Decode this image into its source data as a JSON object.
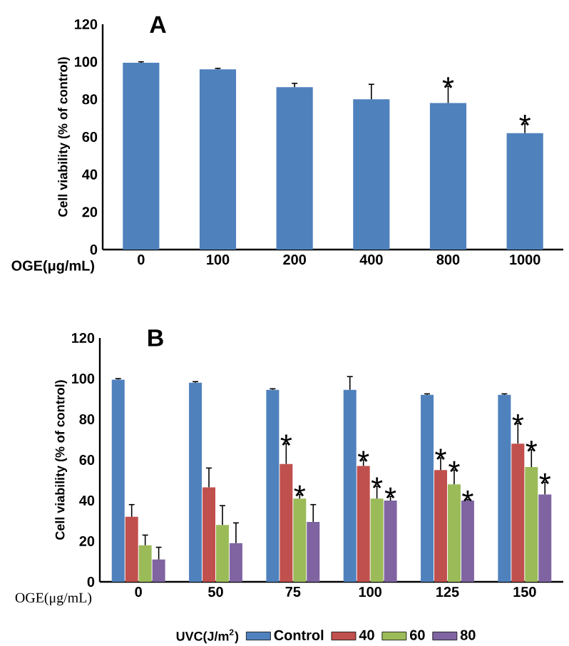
{
  "chart_data": [
    {
      "type": "bar",
      "title": "A",
      "xlabel": "OGE(μg/mL)",
      "ylabel": "Cell viability (% of control)",
      "categories": [
        "0",
        "100",
        "200",
        "400",
        "800",
        "1000"
      ],
      "values": [
        99.5,
        96,
        86.5,
        80,
        78,
        62
      ],
      "color": "#4f81bd",
      "errors": [
        [
          99.5,
          100
        ],
        [
          96,
          96.5
        ],
        [
          86.5,
          88.5
        ],
        [
          80,
          88
        ],
        [
          78,
          87
        ],
        [
          62,
          67
        ]
      ],
      "ylim": [
        0,
        120
      ],
      "yticks": [
        0,
        20,
        40,
        60,
        80,
        100,
        120
      ],
      "annotations": [
        {
          "text": "*",
          "x": "800",
          "y": 87
        },
        {
          "text": "*",
          "x": "1000",
          "y": 67
        }
      ]
    },
    {
      "type": "bar",
      "title": "B",
      "xlabel": "OGE(μg/mL)",
      "ylabel": "Cell viability (% of control)",
      "legend_title": "UVC(J/m$^{2}$)",
      "categories": [
        "0",
        "50",
        "75",
        "100",
        "125",
        "150"
      ],
      "series": [
        {
          "name": "Control",
          "color": "#4f81bd",
          "values": [
            99.5,
            98,
            94.5,
            94.5,
            92,
            92
          ],
          "errors": [
            [
              99.5,
              100
            ],
            [
              98,
              98.5
            ],
            [
              94.5,
              95
            ],
            [
              94.5,
              101
            ],
            [
              92,
              92.5
            ],
            [
              92,
              92.5
            ]
          ]
        },
        {
          "name": "40",
          "color": "#c0504d",
          "values": [
            32,
            46.5,
            58,
            57,
            55,
            68
          ],
          "errors": [
            [
              32,
              38
            ],
            [
              46.5,
              56
            ],
            [
              58,
              68
            ],
            [
              57,
              60
            ],
            [
              55,
              61
            ],
            [
              68,
              78
            ]
          ]
        },
        {
          "name": "60",
          "color": "#9bbb59",
          "values": [
            18,
            28,
            41,
            41,
            48,
            56.5
          ],
          "errors": [
            [
              18,
              23
            ],
            [
              28,
              37.5
            ],
            [
              41,
              43
            ],
            [
              41,
              47
            ],
            [
              48,
              55
            ],
            [
              56.5,
              65
            ]
          ]
        },
        {
          "name": "80",
          "color": "#8064a2",
          "values": [
            11,
            19,
            29.5,
            40,
            40,
            43
          ],
          "errors": [
            [
              11,
              17
            ],
            [
              19,
              29
            ],
            [
              29.5,
              38
            ],
            [
              40,
              42
            ],
            [
              40,
              40.5
            ],
            [
              43,
              49
            ]
          ]
        }
      ],
      "legend": "bottom",
      "ylim": [
        0,
        120
      ],
      "yticks": [
        0,
        20,
        40,
        60,
        80,
        100,
        120
      ],
      "annotations": [
        {
          "text": "*",
          "x": "75",
          "y": 68
        },
        {
          "text": "*",
          "x": "75",
          "y": 43
        },
        {
          "text": "*",
          "x": "100",
          "y": 60
        },
        {
          "text": "*",
          "x": "100",
          "y": 47
        },
        {
          "text": "*",
          "x": "100",
          "y": 42
        },
        {
          "text": "*",
          "x": "125",
          "y": 61
        },
        {
          "text": "*",
          "x": "125",
          "y": 55
        },
        {
          "text": "*",
          "x": "125",
          "y": 40.5
        },
        {
          "text": "*",
          "x": "150",
          "y": 78
        },
        {
          "text": "*",
          "x": "150",
          "y": 65
        },
        {
          "text": "*",
          "x": "150",
          "y": 49
        }
      ]
    }
  ]
}
